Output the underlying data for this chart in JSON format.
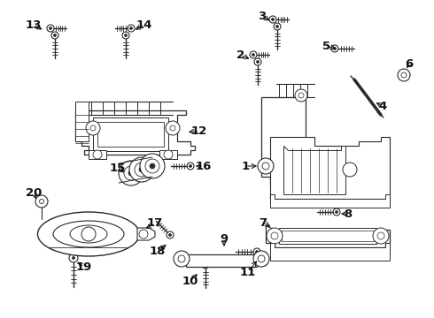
{
  "bg_color": "#ffffff",
  "line_color": "#2a2a2a",
  "text_color": "#111111",
  "figsize": [
    4.9,
    3.6
  ],
  "dpi": 100,
  "label_fontsize": 9.5,
  "arrow_fontsize": 7
}
